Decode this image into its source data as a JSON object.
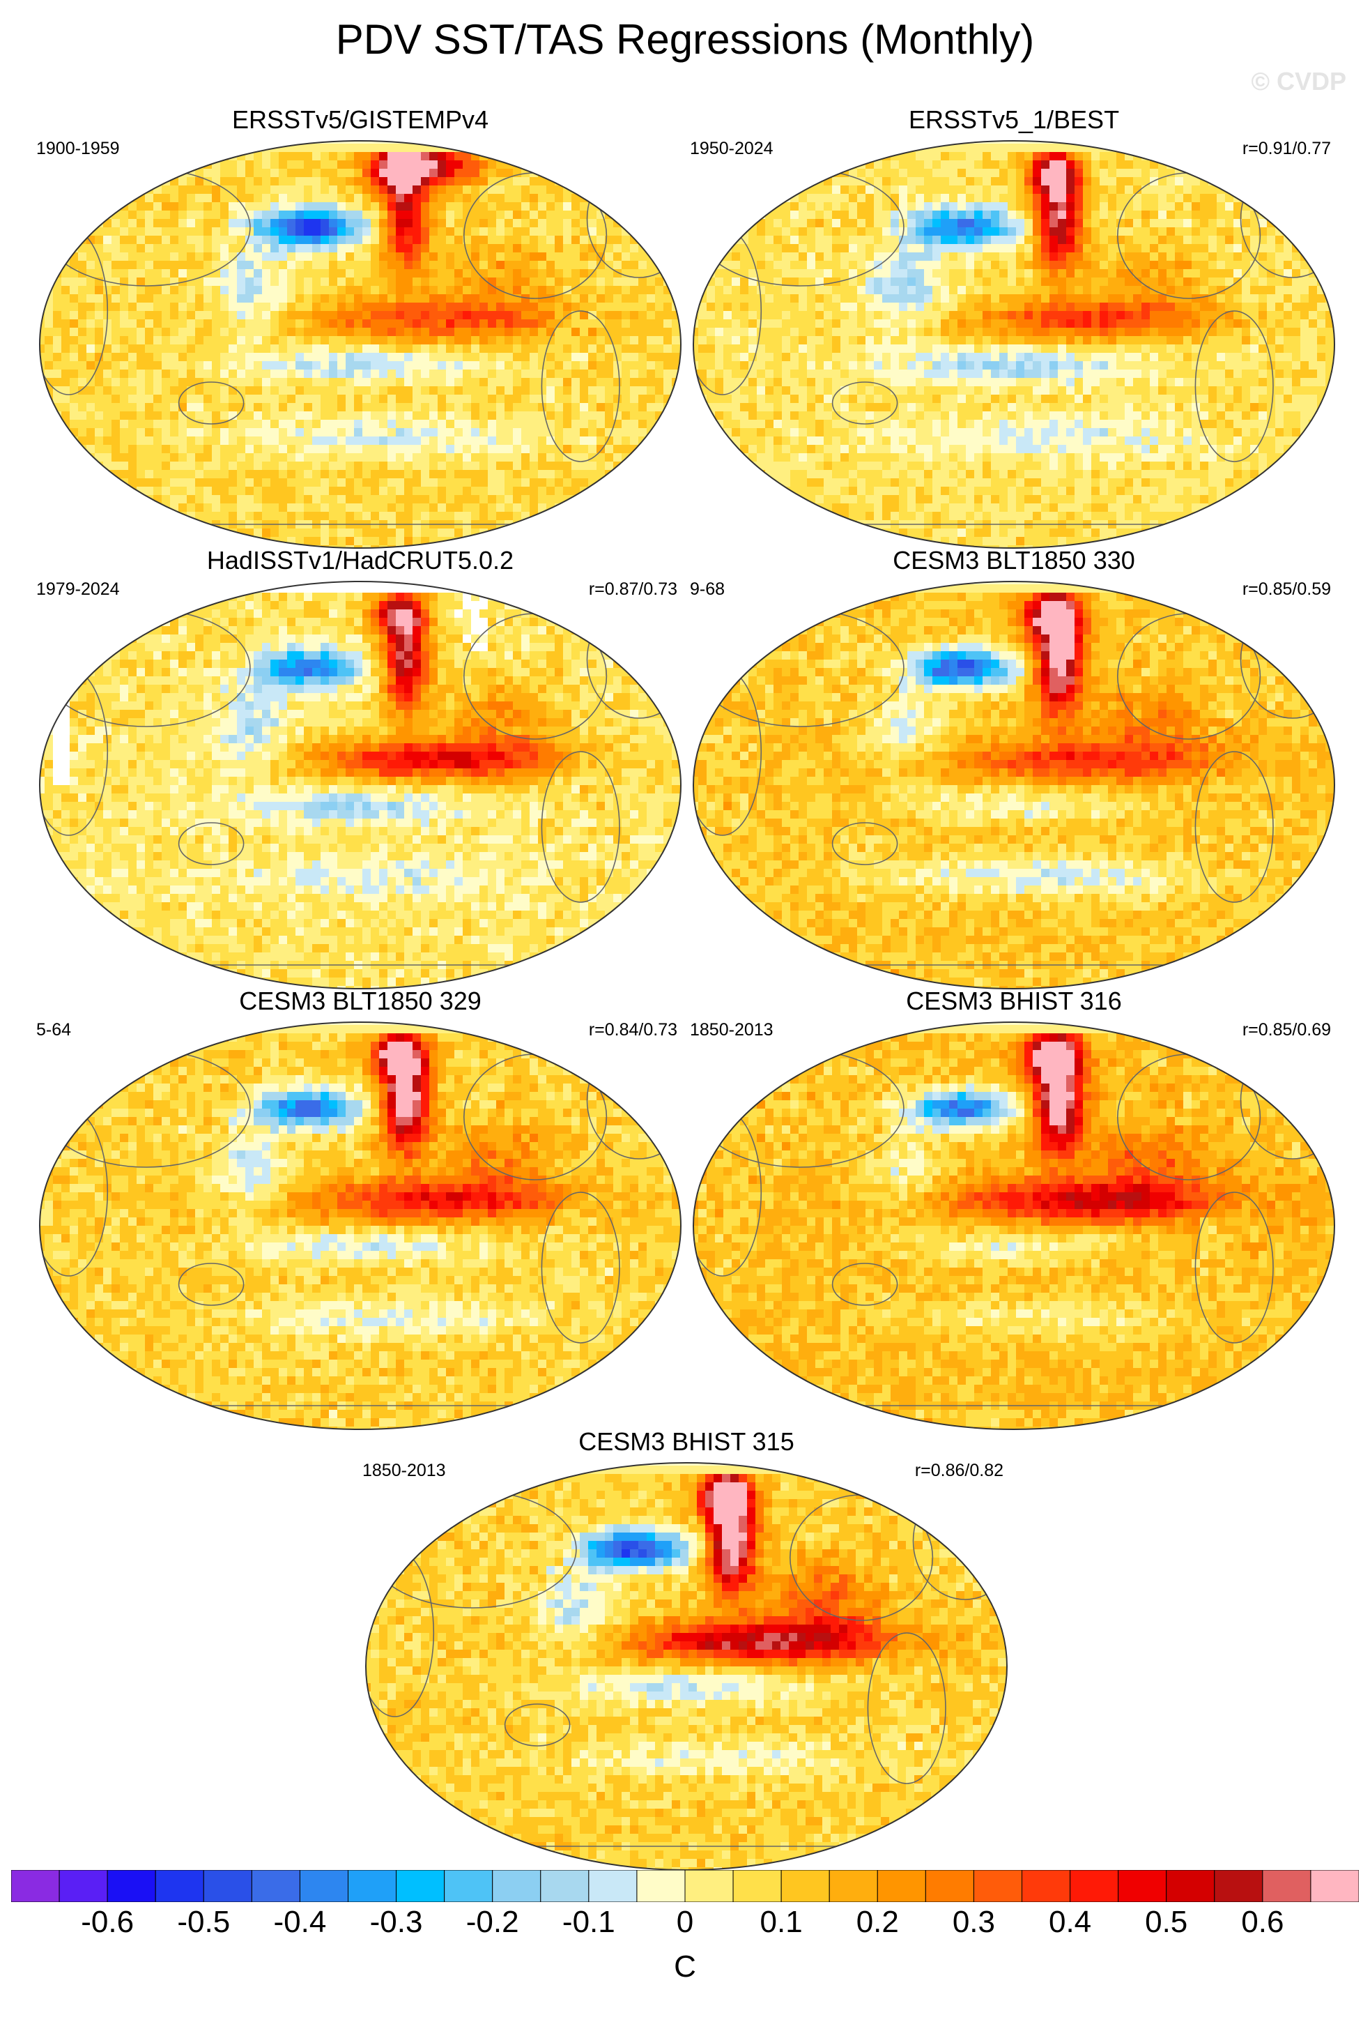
{
  "figure": {
    "title": "PDV SST/TAS Regressions (Monthly)",
    "watermark": "© CVDP",
    "colors": {
      "ocean_outline": "#333333",
      "land_outline": "#666666",
      "ice_cap": "#fffcc8",
      "missing": "#ffffff"
    }
  },
  "chart_data": {
    "type": "map-panels",
    "field": "SST/TAS regression on PDV index",
    "projection": "Robinson (Pacific-centred)",
    "panels": [
      {
        "title": "ERSSTv5/GISTEMPv4",
        "years": "1900-1959",
        "corr": "",
        "features": {
          "npac_cold": -0.62,
          "alaska_warm": 0.45,
          "arctic_warm": 0.52,
          "tropical_warm": 0.28,
          "horseshoe_cold": -0.18,
          "south_cold": -0.14,
          "background": 0.08
        },
        "noise_seed": 11,
        "missing": false
      },
      {
        "title": "ERSSTv5_1/BEST",
        "years": "1950-2024",
        "corr": "r=0.91/0.77",
        "features": {
          "npac_cold": -0.48,
          "alaska_warm": 0.58,
          "arctic_warm": 0.0,
          "tropical_warm": 0.32,
          "horseshoe_cold": -0.2,
          "south_cold": -0.12,
          "background": 0.06
        },
        "noise_seed": 23,
        "missing": false
      },
      {
        "title": "HadISSTv1/HadCRUT5.0.2",
        "years": "1979-2024",
        "corr": "r=0.87/0.73",
        "features": {
          "npac_cold": -0.45,
          "alaska_warm": 0.55,
          "arctic_warm": 0.0,
          "tropical_warm": 0.42,
          "horseshoe_cold": -0.16,
          "south_cold": -0.1,
          "background": 0.05
        },
        "noise_seed": 37,
        "missing": true
      },
      {
        "title": "CESM3 BLT1850 330",
        "years": "9-68",
        "corr": "r=0.85/0.59",
        "features": {
          "npac_cold": -0.6,
          "alaska_warm": 0.66,
          "arctic_warm": 0.0,
          "tropical_warm": 0.3,
          "horseshoe_cold": -0.15,
          "south_cold": -0.18,
          "background": 0.12
        },
        "noise_seed": 41,
        "missing": false
      },
      {
        "title": "CESM3 BLT1850 329",
        "years": "5-64",
        "corr": "r=0.84/0.73",
        "features": {
          "npac_cold": -0.52,
          "alaska_warm": 0.66,
          "arctic_warm": 0.0,
          "tropical_warm": 0.36,
          "horseshoe_cold": -0.17,
          "south_cold": -0.14,
          "background": 0.1
        },
        "noise_seed": 53,
        "missing": false
      },
      {
        "title": "CESM3 BHIST 316",
        "years": "1850-2013",
        "corr": "r=0.85/0.69",
        "features": {
          "npac_cold": -0.55,
          "alaska_warm": 0.68,
          "arctic_warm": 0.0,
          "tropical_warm": 0.4,
          "horseshoe_cold": -0.15,
          "south_cold": -0.12,
          "background": 0.14
        },
        "noise_seed": 67,
        "missing": false
      },
      {
        "title": "CESM3 BHIST 315",
        "years": "1850-2013",
        "corr": "r=0.86/0.82",
        "features": {
          "npac_cold": -0.62,
          "alaska_warm": 0.7,
          "arctic_warm": 0.0,
          "tropical_warm": 0.5,
          "horseshoe_cold": -0.2,
          "south_cold": -0.12,
          "background": 0.1
        },
        "noise_seed": 79,
        "missing": false
      }
    ],
    "colorbar": {
      "units": "C",
      "boundaries": [
        -0.7,
        -0.65,
        -0.6,
        -0.55,
        -0.5,
        -0.45,
        -0.4,
        -0.35,
        -0.3,
        -0.25,
        -0.2,
        -0.15,
        -0.1,
        -0.05,
        0,
        0.05,
        0.1,
        0.15,
        0.2,
        0.25,
        0.3,
        0.35,
        0.4,
        0.45,
        0.5,
        0.55,
        0.6,
        0.65,
        0.7
      ],
      "colors": [
        "#8a2be2",
        "#5a1ff5",
        "#1a10f5",
        "#1e35f0",
        "#2a50e8",
        "#3a6ce8",
        "#2d86f0",
        "#1fa0f8",
        "#00bfff",
        "#4ec3f6",
        "#8ccff2",
        "#a8d8ef",
        "#c9e8f7",
        "#fffcc8",
        "#ffef80",
        "#ffe04a",
        "#ffc620",
        "#ffae0e",
        "#ff9500",
        "#ff7c00",
        "#ff5c0a",
        "#ff3a0a",
        "#ff1a06",
        "#f00000",
        "#d40000",
        "#b81010",
        "#e06060",
        "#ffb6c1"
      ],
      "tick_labels": [
        "-0.6",
        "-0.5",
        "-0.4",
        "-0.3",
        "-0.2",
        "-0.1",
        "0",
        "0.1",
        "0.2",
        "0.3",
        "0.4",
        "0.5",
        "0.6"
      ],
      "tick_values": [
        -0.6,
        -0.5,
        -0.4,
        -0.3,
        -0.2,
        -0.1,
        0,
        0.1,
        0.2,
        0.3,
        0.4,
        0.5,
        0.6
      ]
    }
  }
}
